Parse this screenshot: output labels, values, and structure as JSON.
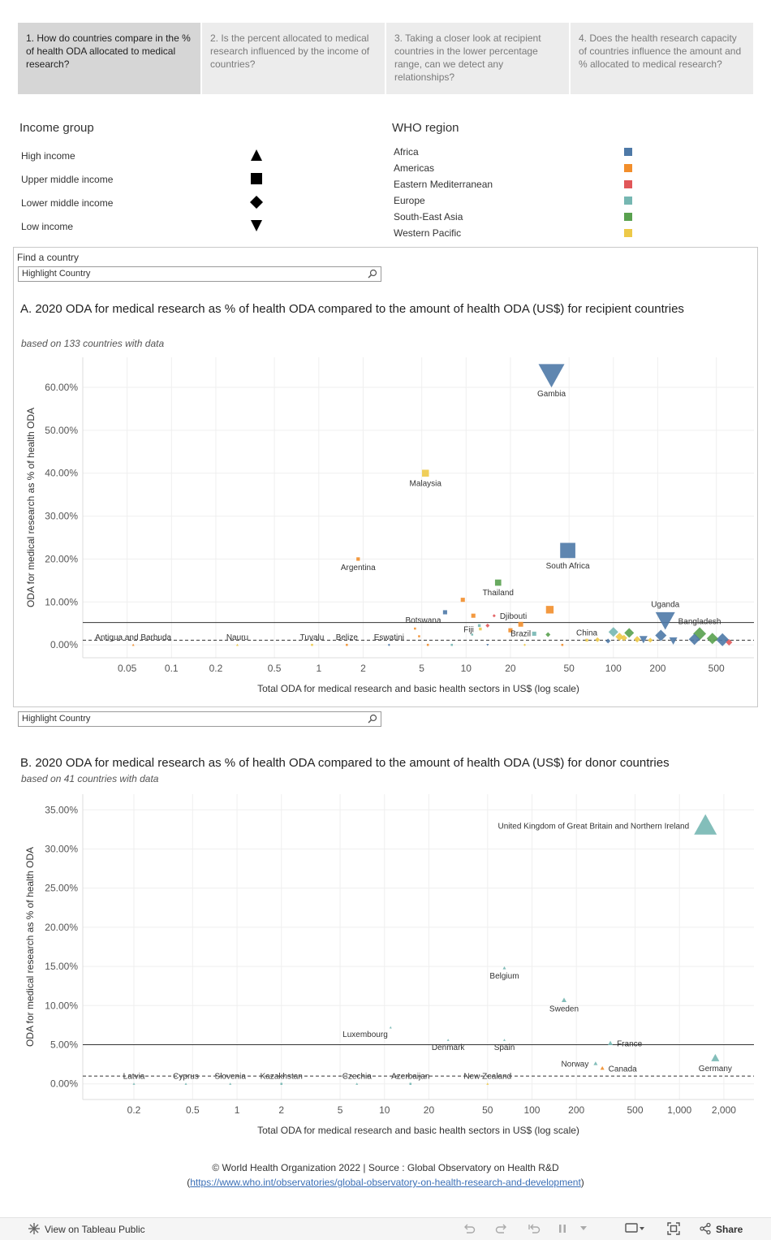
{
  "tabs": [
    {
      "label": "1. How do countries compare in the % of health ODA allocated to medical research?"
    },
    {
      "label": "2. Is the percent allocated to medical research influenced by the income of countries?"
    },
    {
      "label": "3. Taking a closer look at recipient countries in the lower percentage range, can we detect any relationships?"
    },
    {
      "label": "4. Does the health research capacity of countries influence the amount and % allocated to medical research?"
    }
  ],
  "income_legend": {
    "title": "Income group",
    "items": [
      {
        "label": "High income",
        "icon": "triangle-up-icon"
      },
      {
        "label": "Upper middle income",
        "icon": "square-icon"
      },
      {
        "label": "Lower middle income",
        "icon": "diamond-icon"
      },
      {
        "label": "Low income",
        "icon": "triangle-down-icon"
      }
    ]
  },
  "region_legend": {
    "title": "WHO region",
    "items": [
      {
        "label": "Africa",
        "color": "#4e79a7"
      },
      {
        "label": "Americas",
        "color": "#f28e2b"
      },
      {
        "label": "Eastern Mediterranean",
        "color": "#e15759"
      },
      {
        "label": "Europe",
        "color": "#76b7b2"
      },
      {
        "label": "South-East Asia",
        "color": "#59a14f"
      },
      {
        "label": "Western Pacific",
        "color": "#edc948"
      }
    ]
  },
  "finder": {
    "label": "Find a country",
    "placeholder_a": "Highlight Country",
    "placeholder_b": "Highlight Country"
  },
  "chart_data": [
    {
      "type": "scatter",
      "title": "A. 2020 ODA for medical research as % of health ODA  compared to the amount of health ODA (US$) for recipient countries",
      "subtitle": "based on 133 countries with data",
      "xlabel": "Total ODA for medical research and basic health sectors in US$ (log scale)",
      "ylabel": "ODA for medical research as % of health ODA",
      "x_scale": "log",
      "xlim": [
        0.025,
        900
      ],
      "ylim": [
        -3,
        67
      ],
      "x_ticks": [
        0.05,
        0.1,
        0.2,
        0.5,
        1,
        2,
        5,
        10,
        20,
        50,
        100,
        200,
        500
      ],
      "x_tick_labels": [
        "0.05",
        "0.1",
        "0.2",
        "0.5",
        "1",
        "2",
        "5",
        "10",
        "20",
        "50",
        "100",
        "200",
        "500"
      ],
      "y_ticks": [
        0,
        10,
        20,
        30,
        40,
        50,
        60
      ],
      "y_tick_labels": [
        "0.00%",
        "10.00%",
        "20.00%",
        "30.00%",
        "40.00%",
        "50.00%",
        "60.00%"
      ],
      "reference_lines": [
        {
          "y": 5.2,
          "style": "solid"
        },
        {
          "y": 1.1,
          "style": "dashed"
        }
      ],
      "points": [
        {
          "label": "Gambia",
          "x": 38,
          "y": 63,
          "region": "Africa",
          "income": "Low income",
          "size": 16
        },
        {
          "label": "Malaysia",
          "x": 5.3,
          "y": 40,
          "region": "Western Pacific",
          "income": "Upper middle income",
          "size": 5
        },
        {
          "label": "South Africa",
          "x": 49,
          "y": 22,
          "region": "Africa",
          "income": "Upper middle income",
          "size": 11
        },
        {
          "label": "Argentina",
          "x": 1.85,
          "y": 20,
          "region": "Americas",
          "income": "Upper middle income",
          "size": 2.5
        },
        {
          "label": "Thailand",
          "x": 16.5,
          "y": 14.5,
          "region": "South-East Asia",
          "income": "Upper middle income",
          "size": 4.5
        },
        {
          "label": "",
          "x": 9.5,
          "y": 10.5,
          "region": "Americas",
          "income": "Upper middle income",
          "size": 3
        },
        {
          "label": "Botswana",
          "x": 7.2,
          "y": 7.6,
          "region": "Africa",
          "income": "Upper middle income",
          "size": 3
        },
        {
          "label": "",
          "x": 37,
          "y": 8.2,
          "region": "Americas",
          "income": "Upper middle income",
          "size": 5.5
        },
        {
          "label": "Djibouti",
          "x": 15.5,
          "y": 6.8,
          "region": "Eastern Mediterranean",
          "income": "Lower middle income",
          "size": 2
        },
        {
          "label": "",
          "x": 11.2,
          "y": 6.8,
          "region": "Americas",
          "income": "Upper middle income",
          "size": 3
        },
        {
          "label": "Brazil",
          "x": 23.5,
          "y": 4.8,
          "region": "Americas",
          "income": "Upper middle income",
          "size": 3.5
        },
        {
          "label": "Uganda",
          "x": 225,
          "y": 5.8,
          "region": "Africa",
          "income": "Low income",
          "size": 12
        },
        {
          "label": "Fiji",
          "x": 12.5,
          "y": 3.7,
          "region": "Western Pacific",
          "income": "Upper middle income",
          "size": 2
        },
        {
          "label": "",
          "x": 14,
          "y": 4.5,
          "region": "Eastern Mediterranean",
          "income": "Lower middle income",
          "size": 2.5
        },
        {
          "label": "",
          "x": 12.3,
          "y": 4.5,
          "region": "Europe",
          "income": "Upper middle income",
          "size": 2
        },
        {
          "label": "",
          "x": 20,
          "y": 3.4,
          "region": "Americas",
          "income": "Upper middle income",
          "size": 3
        },
        {
          "label": "",
          "x": 29,
          "y": 2.6,
          "region": "Europe",
          "income": "Upper middle income",
          "size": 3
        },
        {
          "label": "",
          "x": 36,
          "y": 2.4,
          "region": "South-East Asia",
          "income": "Lower middle income",
          "size": 3
        },
        {
          "label": "",
          "x": 11,
          "y": 2.4,
          "region": "Europe",
          "income": "Upper middle income",
          "size": 1.5
        },
        {
          "label": "China",
          "x": 66,
          "y": 1.1,
          "region": "Western Pacific",
          "income": "Upper middle income",
          "size": 2
        },
        {
          "label": "",
          "x": 100,
          "y": 3.0,
          "region": "Europe",
          "income": "Lower middle income",
          "size": 6
        },
        {
          "label": "",
          "x": 128,
          "y": 2.8,
          "region": "South-East Asia",
          "income": "Lower middle income",
          "size": 6
        },
        {
          "label": "",
          "x": 110,
          "y": 1.9,
          "region": "Western Pacific",
          "income": "Lower middle income",
          "size": 5
        },
        {
          "label": "",
          "x": 118,
          "y": 1.6,
          "region": "Western Pacific",
          "income": "Lower middle income",
          "size": 4
        },
        {
          "label": "",
          "x": 145,
          "y": 1.3,
          "region": "Western Pacific",
          "income": "Lower middle income",
          "size": 4
        },
        {
          "label": "",
          "x": 160,
          "y": 1.3,
          "region": "Africa",
          "income": "Low income",
          "size": 5
        },
        {
          "label": "",
          "x": 178,
          "y": 1.1,
          "region": "Western Pacific",
          "income": "Lower middle income",
          "size": 3
        },
        {
          "label": "",
          "x": 210,
          "y": 2.2,
          "region": "Africa",
          "income": "Lower middle income",
          "size": 7
        },
        {
          "label": "",
          "x": 255,
          "y": 1.0,
          "region": "Africa",
          "income": "Low income",
          "size": 5
        },
        {
          "label": "Bangladesh",
          "x": 385,
          "y": 2.6,
          "region": "South-East Asia",
          "income": "Lower middle income",
          "size": 8
        },
        {
          "label": "",
          "x": 355,
          "y": 1.3,
          "region": "Africa",
          "income": "Lower middle income",
          "size": 7
        },
        {
          "label": "",
          "x": 470,
          "y": 1.5,
          "region": "South-East Asia",
          "income": "Lower middle income",
          "size": 7
        },
        {
          "label": "",
          "x": 550,
          "y": 1.2,
          "region": "Africa",
          "income": "Lower middle income",
          "size": 8
        },
        {
          "label": "",
          "x": 610,
          "y": 0.6,
          "region": "Eastern Mediterranean",
          "income": "Lower middle income",
          "size": 4
        },
        {
          "label": "",
          "x": 92,
          "y": 0.9,
          "region": "Africa",
          "income": "Lower middle income",
          "size": 3
        },
        {
          "label": "",
          "x": 78,
          "y": 1.2,
          "region": "Western Pacific",
          "income": "Lower middle income",
          "size": 3
        },
        {
          "label": "",
          "x": 4.5,
          "y": 3.8,
          "region": "Americas",
          "income": "Upper middle income",
          "size": 1
        },
        {
          "label": "",
          "x": 4.8,
          "y": 2.0,
          "region": "Americas",
          "income": "Upper middle income",
          "size": 1
        },
        {
          "label": "Antigua and Barbuda",
          "x": 0.055,
          "y": 0,
          "region": "Americas",
          "income": "High income",
          "size": 0.8
        },
        {
          "label": "Nauru",
          "x": 0.28,
          "y": 0,
          "region": "Western Pacific",
          "income": "High income",
          "size": 0.8
        },
        {
          "label": "Tuvalu",
          "x": 0.9,
          "y": 0,
          "region": "Western Pacific",
          "income": "Upper middle income",
          "size": 0.8
        },
        {
          "label": "Belize",
          "x": 1.55,
          "y": 0,
          "region": "Americas",
          "income": "Upper middle income",
          "size": 0.8
        },
        {
          "label": "Eswatini",
          "x": 3.0,
          "y": 0,
          "region": "Africa",
          "income": "Lower middle income",
          "size": 0.8
        },
        {
          "label": "",
          "x": 5.5,
          "y": 0,
          "region": "Americas",
          "income": "Upper middle income",
          "size": 0.8
        },
        {
          "label": "",
          "x": 8,
          "y": 0,
          "region": "Europe",
          "income": "Upper middle income",
          "size": 0.8
        },
        {
          "label": "",
          "x": 14,
          "y": 0,
          "region": "Africa",
          "income": "Low income",
          "size": 0.8
        },
        {
          "label": "",
          "x": 25,
          "y": 0,
          "region": "Western Pacific",
          "income": "Lower middle income",
          "size": 0.8
        },
        {
          "label": "",
          "x": 45,
          "y": 0,
          "region": "Americas",
          "income": "Upper middle income",
          "size": 0.8
        }
      ]
    },
    {
      "type": "scatter",
      "title": "B. 2020 ODA for medical research as % of health ODA compared to the amount of health ODA (US$) for donor countries",
      "subtitle": "based on 41 countries with data",
      "xlabel": "Total ODA for medical research and basic health sectors in US$ (log scale)",
      "ylabel": "ODA for medical research as % of health ODA",
      "x_scale": "log",
      "xlim": [
        0.09,
        3200
      ],
      "ylim": [
        -2,
        37
      ],
      "x_ticks": [
        0.2,
        0.5,
        1,
        2,
        5,
        10,
        20,
        50,
        100,
        200,
        500,
        1000,
        2000
      ],
      "x_tick_labels": [
        "0.2",
        "0.5",
        "1",
        "2",
        "5",
        "10",
        "20",
        "50",
        "100",
        "200",
        "500",
        "1,000",
        "2,000"
      ],
      "y_ticks": [
        0,
        5,
        10,
        15,
        20,
        25,
        30,
        35
      ],
      "y_tick_labels": [
        "0.00%",
        "5.00%",
        "10.00%",
        "15.00%",
        "20.00%",
        "25.00%",
        "30.00%",
        "35.00%"
      ],
      "reference_lines": [
        {
          "y": 5.0,
          "style": "solid"
        },
        {
          "y": 1.0,
          "style": "dashed"
        }
      ],
      "points": [
        {
          "label": "United Kingdom of Great Britain and Northern Ireland",
          "x": 1500,
          "y": 33,
          "region": "Europe",
          "income": "High income",
          "size": 14
        },
        {
          "label": "Belgium",
          "x": 65,
          "y": 14.8,
          "region": "Europe",
          "income": "High income",
          "size": 2
        },
        {
          "label": "Sweden",
          "x": 165,
          "y": 10.7,
          "region": "Europe",
          "income": "High income",
          "size": 3
        },
        {
          "label": "Luxembourg",
          "x": 11,
          "y": 7.2,
          "region": "Europe",
          "income": "High income",
          "size": 1
        },
        {
          "label": "Denmark",
          "x": 27,
          "y": 5.6,
          "region": "Europe",
          "income": "High income",
          "size": 1
        },
        {
          "label": "Spain",
          "x": 65,
          "y": 5.6,
          "region": "Europe",
          "income": "High income",
          "size": 1.5
        },
        {
          "label": "France",
          "x": 340,
          "y": 5.2,
          "region": "Europe",
          "income": "High income",
          "size": 3
        },
        {
          "label": "Norway",
          "x": 270,
          "y": 2.6,
          "region": "Europe",
          "income": "High income",
          "size": 2.5
        },
        {
          "label": "Canada",
          "x": 300,
          "y": 2.0,
          "region": "Americas",
          "income": "High income",
          "size": 2.5
        },
        {
          "label": "Germany",
          "x": 1750,
          "y": 3.3,
          "region": "Europe",
          "income": "High income",
          "size": 5
        },
        {
          "label": "Latvia",
          "x": 0.2,
          "y": 0,
          "region": "Europe",
          "income": "High income",
          "size": 0.8
        },
        {
          "label": "Cyprus",
          "x": 0.45,
          "y": 0,
          "region": "Europe",
          "income": "High income",
          "size": 0.8
        },
        {
          "label": "Slovenia",
          "x": 0.9,
          "y": 0,
          "region": "Europe",
          "income": "High income",
          "size": 0.8
        },
        {
          "label": "Kazakhstan",
          "x": 2.0,
          "y": 0,
          "region": "Europe",
          "income": "Upper middle income",
          "size": 1
        },
        {
          "label": "Czechia",
          "x": 6.5,
          "y": 0,
          "region": "Europe",
          "income": "High income",
          "size": 1
        },
        {
          "label": "Azerbaijan",
          "x": 15,
          "y": 0,
          "region": "Europe",
          "income": "Upper middle income",
          "size": 0.8
        },
        {
          "label": "New Zealand",
          "x": 50,
          "y": 0,
          "region": "Western Pacific",
          "income": "High income",
          "size": 1
        }
      ]
    }
  ],
  "footer": {
    "line1": "© World Health Organization 2022 | Source : Global Observatory on Health R&D",
    "link": "https://www.who.int/observatories/global-observatory-on-health-research-and-development",
    "paren_open": "(",
    "paren_close": ")"
  },
  "toolbar": {
    "view_label": "View on Tableau Public",
    "share_label": "Share"
  }
}
